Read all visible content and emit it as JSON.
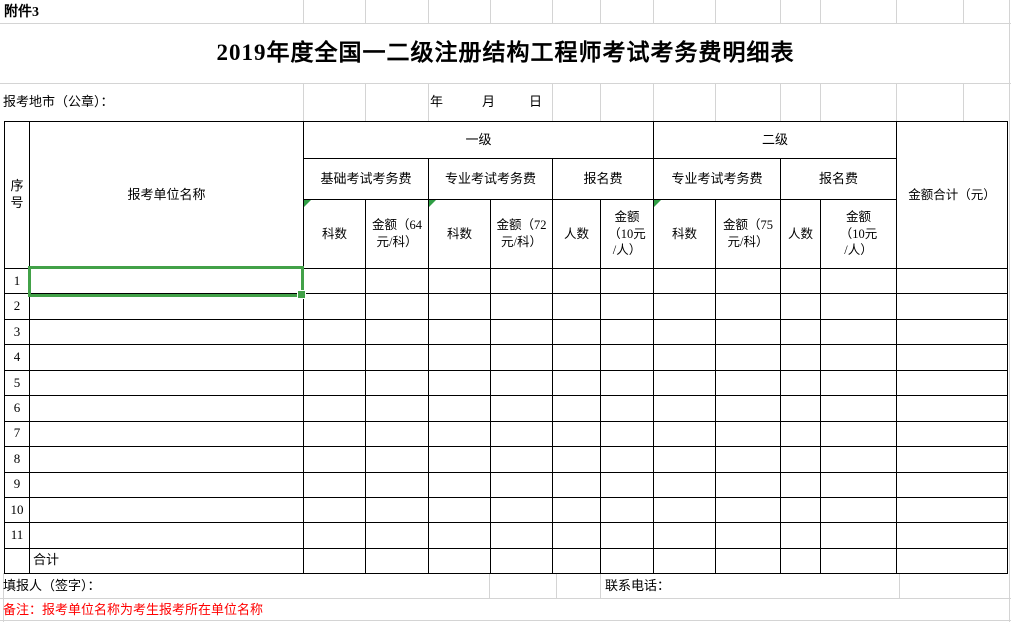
{
  "attachment": "附件3",
  "title": "2019年度全国一二级注册结构工程师考试考务费明细表",
  "meta": {
    "city_label": "报考地市（公章）：",
    "year": "年",
    "month": "月",
    "day": "日"
  },
  "table": {
    "headers": {
      "seq": "序\n号",
      "unit": "报考单位名称",
      "level1": "一级",
      "level2": "二级",
      "l1_basic_fee": "基础考试考务费",
      "l1_prof_fee": "专业考试考务费",
      "l1_reg_fee": "报名费",
      "l2_prof_fee": "专业考试考务费",
      "l2_reg_fee": "报名费",
      "subjects_basic": "科数",
      "amount_basic": "金额（64\n元/科）",
      "subjects_prof1": "科数",
      "amount_prof1": "金额（72\n元/科）",
      "people_reg1": "人数",
      "amount_reg1": "金额\n（10元\n/人）",
      "subjects_prof2": "科数",
      "amount_prof2": "金额（75\n元/科）",
      "people_reg2": "人数",
      "amount_reg2": "金额\n（10元\n/人）",
      "grand_total": "金额合计（元）"
    },
    "row_numbers": [
      "1",
      "2",
      "3",
      "4",
      "5",
      "6",
      "7",
      "8",
      "9",
      "10",
      "11"
    ],
    "total_label": "合计",
    "empty_cell": ""
  },
  "footer": {
    "filler_label": "填报人（签字）：",
    "phone_label": "联系电话：",
    "note": "备注：报考单位名称为考生报考所在单位名称"
  },
  "colors": {
    "selection_green": "#42a148",
    "flag_green": "#2f9e44",
    "note_red": "#ff0000",
    "grid_gray": "#d4d4d4",
    "border_black": "#000000"
  }
}
